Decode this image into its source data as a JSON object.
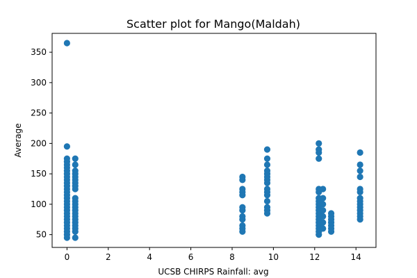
{
  "chart_data": {
    "type": "scatter",
    "title": "Scatter plot for Mango(Maldah)",
    "xlabel": "UCSB CHIRPS Rainfall: avg",
    "ylabel": "Average",
    "xlim": [
      -0.72,
      14.97
    ],
    "ylim": [
      29,
      381
    ],
    "xticks": [
      0,
      2,
      4,
      6,
      8,
      10,
      12,
      14
    ],
    "yticks": [
      50,
      100,
      150,
      200,
      250,
      300,
      350
    ],
    "grid": false,
    "marker_color": "#1f77b4",
    "series": [
      {
        "points": [
          [
            0.0,
            365
          ],
          [
            0.0,
            195
          ],
          [
            0.0,
            175
          ],
          [
            0.0,
            170
          ],
          [
            0.0,
            165
          ],
          [
            0.0,
            160
          ],
          [
            0.0,
            155
          ],
          [
            0.0,
            150
          ],
          [
            0.0,
            145
          ],
          [
            0.0,
            140
          ],
          [
            0.0,
            135
          ],
          [
            0.0,
            130
          ],
          [
            0.0,
            125
          ],
          [
            0.0,
            120
          ],
          [
            0.0,
            115
          ],
          [
            0.0,
            110
          ],
          [
            0.0,
            105
          ],
          [
            0.0,
            100
          ],
          [
            0.0,
            95
          ],
          [
            0.0,
            90
          ],
          [
            0.0,
            85
          ],
          [
            0.0,
            80
          ],
          [
            0.0,
            75
          ],
          [
            0.0,
            70
          ],
          [
            0.0,
            65
          ],
          [
            0.0,
            60
          ],
          [
            0.0,
            55
          ],
          [
            0.0,
            50
          ],
          [
            0.0,
            45
          ],
          [
            0.4,
            175
          ],
          [
            0.4,
            165
          ],
          [
            0.4,
            155
          ],
          [
            0.4,
            150
          ],
          [
            0.4,
            145
          ],
          [
            0.4,
            140
          ],
          [
            0.4,
            135
          ],
          [
            0.4,
            130
          ],
          [
            0.4,
            125
          ],
          [
            0.4,
            110
          ],
          [
            0.4,
            105
          ],
          [
            0.4,
            100
          ],
          [
            0.4,
            95
          ],
          [
            0.4,
            90
          ],
          [
            0.4,
            85
          ],
          [
            0.4,
            80
          ],
          [
            0.4,
            75
          ],
          [
            0.4,
            70
          ],
          [
            0.4,
            65
          ],
          [
            0.4,
            60
          ],
          [
            0.4,
            55
          ],
          [
            0.4,
            45
          ],
          [
            8.5,
            145
          ],
          [
            8.5,
            140
          ],
          [
            8.5,
            125
          ],
          [
            8.5,
            120
          ],
          [
            8.5,
            115
          ],
          [
            8.5,
            95
          ],
          [
            8.5,
            90
          ],
          [
            8.5,
            80
          ],
          [
            8.5,
            75
          ],
          [
            8.5,
            65
          ],
          [
            8.5,
            60
          ],
          [
            8.5,
            55
          ],
          [
            9.7,
            190
          ],
          [
            9.7,
            175
          ],
          [
            9.7,
            165
          ],
          [
            9.7,
            155
          ],
          [
            9.7,
            150
          ],
          [
            9.7,
            145
          ],
          [
            9.7,
            140
          ],
          [
            9.7,
            135
          ],
          [
            9.7,
            125
          ],
          [
            9.7,
            120
          ],
          [
            9.7,
            115
          ],
          [
            9.7,
            105
          ],
          [
            9.7,
            95
          ],
          [
            9.7,
            90
          ],
          [
            9.7,
            85
          ],
          [
            12.2,
            200
          ],
          [
            12.2,
            190
          ],
          [
            12.2,
            185
          ],
          [
            12.2,
            175
          ],
          [
            12.2,
            125
          ],
          [
            12.2,
            120
          ],
          [
            12.2,
            110
          ],
          [
            12.2,
            105
          ],
          [
            12.2,
            100
          ],
          [
            12.2,
            95
          ],
          [
            12.2,
            90
          ],
          [
            12.2,
            85
          ],
          [
            12.2,
            80
          ],
          [
            12.2,
            75
          ],
          [
            12.2,
            70
          ],
          [
            12.2,
            65
          ],
          [
            12.2,
            60
          ],
          [
            12.2,
            55
          ],
          [
            12.2,
            50
          ],
          [
            12.4,
            125
          ],
          [
            12.4,
            110
          ],
          [
            12.4,
            100
          ],
          [
            12.4,
            90
          ],
          [
            12.4,
            80
          ],
          [
            12.4,
            70
          ],
          [
            12.4,
            60
          ],
          [
            12.8,
            85
          ],
          [
            12.8,
            80
          ],
          [
            12.8,
            75
          ],
          [
            12.8,
            70
          ],
          [
            12.8,
            65
          ],
          [
            12.8,
            60
          ],
          [
            12.8,
            55
          ],
          [
            14.2,
            185
          ],
          [
            14.2,
            165
          ],
          [
            14.2,
            155
          ],
          [
            14.2,
            145
          ],
          [
            14.2,
            125
          ],
          [
            14.2,
            120
          ],
          [
            14.2,
            110
          ],
          [
            14.2,
            105
          ],
          [
            14.2,
            100
          ],
          [
            14.2,
            95
          ],
          [
            14.2,
            90
          ],
          [
            14.2,
            85
          ],
          [
            14.2,
            80
          ],
          [
            14.2,
            75
          ]
        ]
      }
    ]
  }
}
